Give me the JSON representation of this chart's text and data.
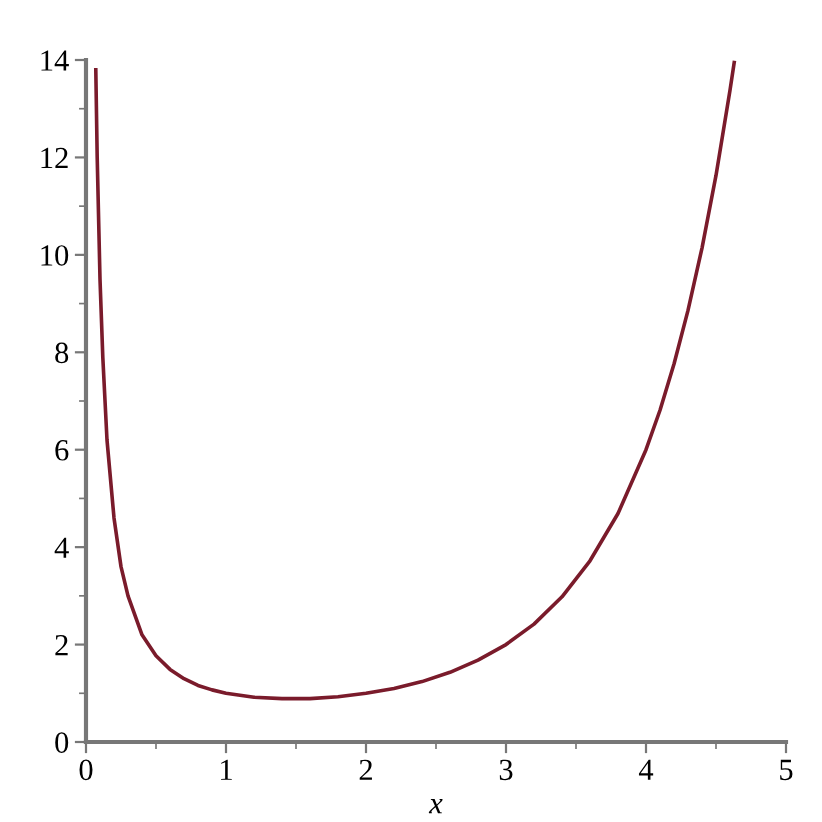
{
  "chart_data": {
    "type": "line",
    "xlabel": "x",
    "x": [
      0.07,
      0.08,
      0.1,
      0.12,
      0.15,
      0.2,
      0.25,
      0.3,
      0.4,
      0.5,
      0.6,
      0.7,
      0.8,
      0.9,
      1.0,
      1.2,
      1.4,
      1.5,
      1.6,
      1.8,
      2.0,
      2.2,
      2.4,
      2.6,
      2.8,
      3.0,
      3.2,
      3.4,
      3.6,
      3.8,
      4.0,
      4.1,
      4.2,
      4.3,
      4.4,
      4.5,
      4.6,
      4.63
    ],
    "series": [
      {
        "color": "#7a1b2b",
        "values": [
          13.8,
          12.0,
          9.5,
          7.9,
          6.2,
          4.6,
          3.6,
          3.0,
          2.2,
          1.77,
          1.49,
          1.3,
          1.16,
          1.07,
          1.0,
          0.92,
          0.89,
          0.89,
          0.89,
          0.93,
          1.0,
          1.1,
          1.24,
          1.43,
          1.68,
          2.0,
          2.42,
          2.98,
          3.72,
          4.69,
          6.0,
          6.81,
          7.76,
          8.86,
          10.14,
          11.63,
          13.38,
          13.95
        ]
      }
    ],
    "xlim": [
      0,
      5
    ],
    "ylim": [
      0,
      14
    ],
    "xticks": [
      0,
      {
        "value": 0.5,
        "label": null
      },
      1,
      {
        "value": 1.5,
        "label": null
      },
      2,
      {
        "value": 2.5,
        "label": null
      },
      3,
      {
        "value": 3.5,
        "label": null
      },
      4,
      {
        "value": 4.5,
        "label": null
      },
      5
    ],
    "yticks": [
      0,
      {
        "value": 1,
        "label": null
      },
      2,
      {
        "value": 3,
        "label": null
      },
      4,
      {
        "value": 5,
        "label": null
      },
      6,
      {
        "value": 7,
        "label": null
      },
      8,
      {
        "value": 9,
        "label": null
      },
      10,
      {
        "value": 11,
        "label": null
      },
      12,
      {
        "value": 13,
        "label": null
      },
      14
    ],
    "grid": false,
    "legend": false,
    "marker": "none",
    "line_style": "solid"
  }
}
